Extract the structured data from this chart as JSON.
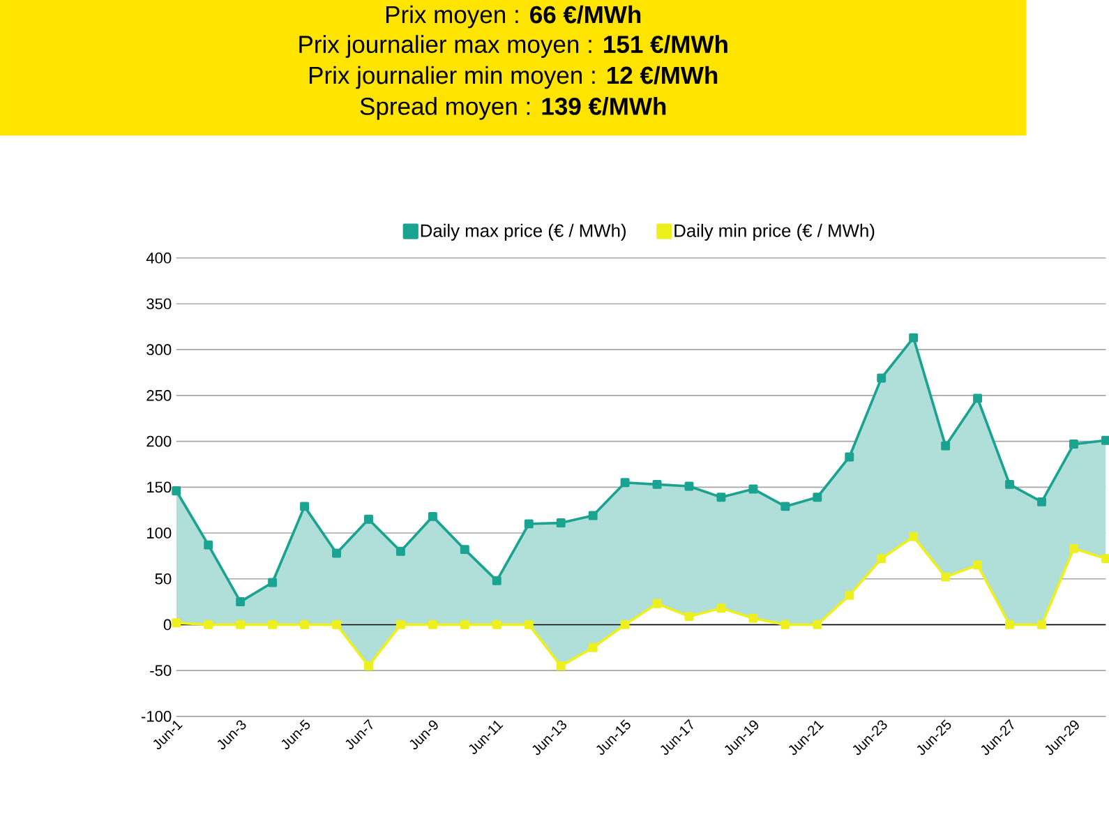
{
  "chart_data": {
    "type": "line",
    "title": "Prix moyen : **66 €/MWh**",
    "annotations": [
      "Prix journalier max moyen : **151 €/MWh**",
      "Prix journalier min moyen : **12 €/MWh**",
      "Spread moyen : **139 €/MWh**"
    ],
    "categories": [
      "Jun-1",
      null,
      "Jun-3",
      null,
      "Jun-5",
      null,
      "Jun-7",
      null,
      "Jun-9",
      null,
      "Jun-11",
      null,
      "Jun-13",
      null,
      "Jun-15",
      null,
      "Jun-17",
      null,
      "Jun-19",
      null,
      "Jun-21",
      null,
      "Jun-23",
      null,
      "Jun-25",
      null,
      "Jun-27",
      null,
      "Jun-29",
      null
    ],
    "series": [
      {
        "name": "Daily max price (€ / MWh)",
        "color": "#1aa390",
        "values": [
          146,
          87,
          25,
          46,
          129,
          78,
          115,
          80,
          118,
          82,
          48,
          110,
          111,
          119,
          155,
          153,
          151,
          139,
          148,
          129,
          139,
          183,
          269,
          313,
          195,
          247,
          153,
          134,
          197,
          201
        ],
        "lower": [
          2,
          0,
          0,
          0,
          0,
          0,
          -45,
          0,
          0,
          0,
          0,
          0,
          -45,
          -25,
          0,
          23,
          9,
          18,
          7,
          0,
          0,
          32,
          72,
          96,
          52,
          65,
          0,
          0,
          83,
          72
        ],
        "upper": [
          146,
          87,
          25,
          46,
          129,
          78,
          115,
          80,
          118,
          82,
          48,
          110,
          111,
          119,
          155,
          153,
          151,
          139,
          148,
          129,
          139,
          183,
          269,
          313,
          195,
          247,
          153,
          134,
          197,
          201
        ]
      },
      {
        "name": "Daily min price (€ / MWh)",
        "color": "#eef01e",
        "values": [
          2,
          0,
          0,
          0,
          0,
          0,
          -45,
          0,
          0,
          0,
          0,
          0,
          -45,
          -25,
          0,
          23,
          9,
          18,
          7,
          0,
          0,
          32,
          72,
          96,
          52,
          65,
          0,
          0,
          83,
          72
        ]
      }
    ],
    "ylim": [
      -100,
      400
    ],
    "yticks": [
      -100,
      -50,
      0,
      50,
      100,
      150,
      200,
      250,
      300,
      350,
      400
    ],
    "grid": "y",
    "legend": "top",
    "marker": "square",
    "line_style": "solid"
  }
}
